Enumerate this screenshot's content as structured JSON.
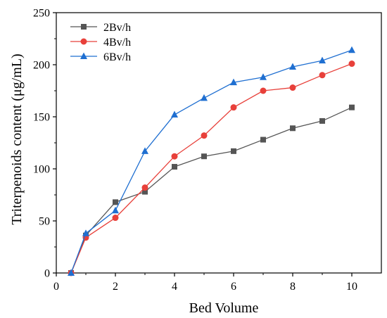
{
  "chart_data": {
    "type": "line",
    "title": "",
    "xlabel": "Bed Volume",
    "ylabel": "Triterpenoids content (μg/mL)",
    "xlim": [
      0,
      11
    ],
    "ylim": [
      0,
      250
    ],
    "xticks": [
      0,
      2,
      4,
      6,
      8,
      10
    ],
    "yticks": [
      0,
      50,
      100,
      150,
      200,
      250
    ],
    "grid": false,
    "legend_position": "top-left",
    "x": [
      0.5,
      1,
      2,
      3,
      4,
      5,
      6,
      7,
      8,
      9,
      10
    ],
    "series": [
      {
        "name": "2Bv/h",
        "color": "#555555",
        "marker": "square",
        "values": [
          0,
          36,
          68,
          78,
          102,
          112,
          117,
          128,
          139,
          146,
          159
        ]
      },
      {
        "name": "4Bv/h",
        "color": "#e8403a",
        "marker": "circle",
        "values": [
          0,
          34,
          53,
          82,
          112,
          132,
          159,
          175,
          178,
          190,
          201
        ]
      },
      {
        "name": "6Bv/h",
        "color": "#1f6fd1",
        "marker": "triangle",
        "values": [
          0,
          38,
          60,
          117,
          152,
          168,
          183,
          188,
          198,
          204,
          214
        ]
      }
    ]
  }
}
